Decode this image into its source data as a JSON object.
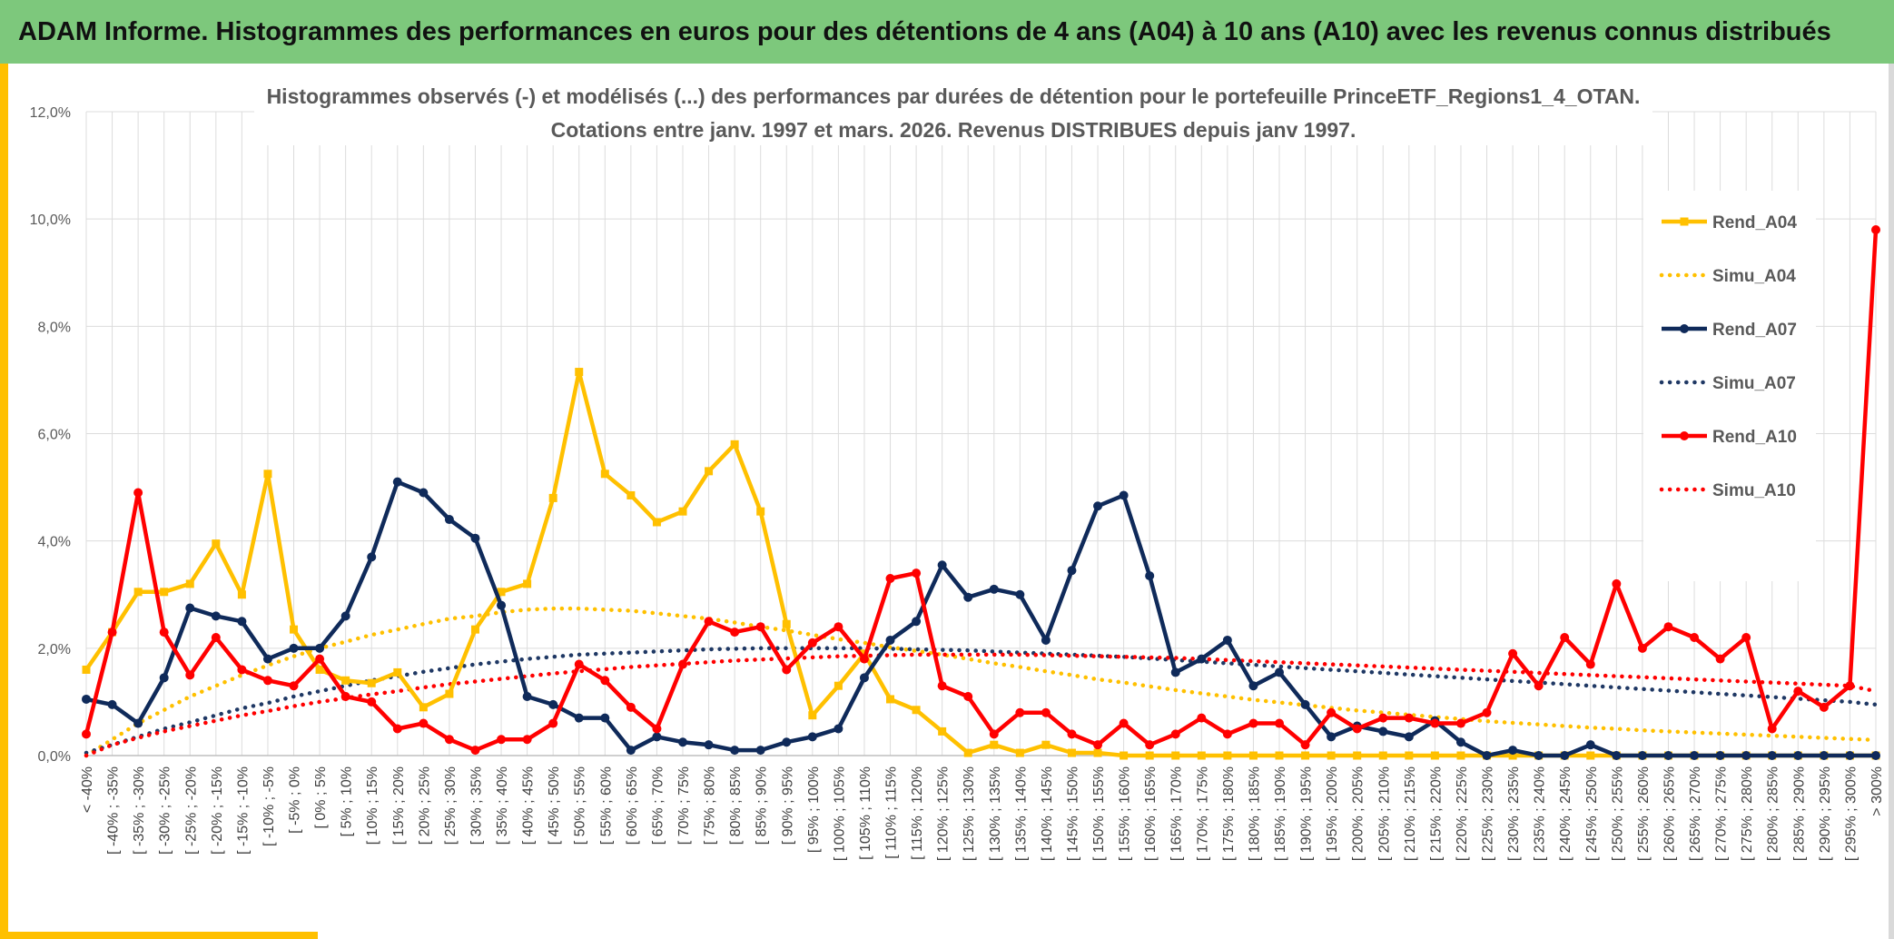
{
  "header": {
    "banner_title": "ADAM Informe. Histogrammes des performances en euros pour des détentions de 4 ans (A04) à 10 ans (A10) avec les revenus connus distribués"
  },
  "chart_data": {
    "type": "line",
    "title": "Histogrammes observés (-) et modélisés (...) des performances par durées de détention pour le portefeuille PrinceETF_Regions1_4_OTAN.",
    "subtitle": "Cotations entre janv. 1997 et mars. 2026. Revenus DISTRIBUES depuis janv 1997.",
    "xlabel": "",
    "ylabel": "",
    "ylim": [
      0,
      12
    ],
    "y_ticks": [
      "0,0%",
      "2,0%",
      "4,0%",
      "6,0%",
      "8,0%",
      "10,0%",
      "12,0%"
    ],
    "grid": true,
    "legend_position": "right",
    "categories": [
      "< -40%",
      "[ -40% ; -35%",
      "[ -35% ; -30%",
      "[ -30% ; -25%",
      "[ -25% ; -20%",
      "[ -20% ; -15%",
      "[ -15% ; -10%",
      "[ -10% ; -5%",
      "[ -5% ; 0%",
      "[ 0% ; 5%",
      "[ 5% ; 10%",
      "[ 10% ; 15%",
      "[ 15% ; 20%",
      "[ 20% ; 25%",
      "[ 25% ; 30%",
      "[ 30% ; 35%",
      "[ 35% ; 40%",
      "[ 40% ; 45%",
      "[ 45% ; 50%",
      "[ 50% ; 55%",
      "[ 55% ; 60%",
      "[ 60% ; 65%",
      "[ 65% ; 70%",
      "[ 70% ; 75%",
      "[ 75% ; 80%",
      "[ 80% ; 85%",
      "[ 85% ; 90%",
      "[ 90% ; 95%",
      "[ 95% ; 100%",
      "[ 100% ; 105%",
      "[ 105% ; 110%",
      "[ 110% ; 115%",
      "[ 115% ; 120%",
      "[ 120% ; 125%",
      "[ 125% ; 130%",
      "[ 130% ; 135%",
      "[ 135% ; 140%",
      "[ 140% ; 145%",
      "[ 145% ; 150%",
      "[ 150% ; 155%",
      "[ 155% ; 160%",
      "[ 160% ; 165%",
      "[ 165% ; 170%",
      "[ 170% ; 175%",
      "[ 175% ; 180%",
      "[ 180% ; 185%",
      "[ 185% ; 190%",
      "[ 190% ; 195%",
      "[ 195% ; 200%",
      "[ 200% ; 205%",
      "[ 205% ; 210%",
      "[ 210% ; 215%",
      "[ 215% ; 220%",
      "[ 220% ; 225%",
      "[ 225% ; 230%",
      "[ 230% ; 235%",
      "[ 235% ; 240%",
      "[ 240% ; 245%",
      "[ 245% ; 250%",
      "[ 250% ; 255%",
      "[ 255% ; 260%",
      "[ 260% ; 265%",
      "[ 265% ; 270%",
      "[ 270% ; 275%",
      "[ 275% ; 280%",
      "[ 280% ; 285%",
      "[ 285% ; 290%",
      "[ 290% ; 295%",
      "[ 295% ; 300%",
      "> 300%"
    ],
    "series": [
      {
        "name": "Rend_A04",
        "color": "#ffc000",
        "style": "solid",
        "marker": "square",
        "values": [
          1.6,
          2.3,
          3.05,
          3.05,
          3.2,
          3.95,
          3.0,
          5.25,
          2.35,
          1.6,
          1.4,
          1.35,
          1.55,
          0.9,
          1.15,
          2.35,
          3.05,
          3.2,
          4.8,
          7.15,
          5.25,
          4.85,
          4.35,
          4.55,
          5.3,
          5.8,
          4.55,
          2.45,
          0.75,
          1.3,
          1.9,
          1.05,
          0.85,
          0.45,
          0.05,
          0.2,
          0.05,
          0.2,
          0.05,
          0.05,
          0.0,
          0.0,
          0.0,
          0.0,
          0.0,
          0.0,
          0.0,
          0.0,
          0.0,
          0.0,
          0.0,
          0.0,
          0.0,
          0.0,
          0.0,
          0.0,
          0.0,
          0.0,
          0.0,
          0.0,
          0.0,
          0.0,
          0.0,
          0.0,
          0.0,
          0.0,
          0.0,
          0.0,
          0.0,
          0.0
        ]
      },
      {
        "name": "Simu_A04",
        "color": "#ffc000",
        "style": "dotted",
        "values": [
          0.0,
          0.3,
          0.6,
          0.85,
          1.1,
          1.3,
          1.5,
          1.68,
          1.85,
          2.0,
          2.12,
          2.25,
          2.35,
          2.45,
          2.55,
          2.6,
          2.67,
          2.72,
          2.74,
          2.74,
          2.72,
          2.7,
          2.65,
          2.6,
          2.55,
          2.48,
          2.4,
          2.33,
          2.25,
          2.17,
          2.1,
          2.02,
          1.95,
          1.88,
          1.8,
          1.72,
          1.65,
          1.57,
          1.5,
          1.42,
          1.36,
          1.29,
          1.22,
          1.16,
          1.1,
          1.04,
          0.99,
          0.94,
          0.89,
          0.84,
          0.8,
          0.76,
          0.72,
          0.68,
          0.64,
          0.61,
          0.58,
          0.55,
          0.52,
          0.5,
          0.47,
          0.45,
          0.43,
          0.41,
          0.39,
          0.37,
          0.35,
          0.33,
          0.31,
          0.29
        ]
      },
      {
        "name": "Rend_A07",
        "color": "#0f2a5a",
        "style": "solid",
        "marker": "circle",
        "values": [
          1.05,
          0.95,
          0.6,
          1.45,
          2.75,
          2.6,
          2.5,
          1.8,
          2.0,
          2.0,
          2.6,
          3.7,
          5.1,
          4.9,
          4.4,
          4.05,
          2.8,
          1.1,
          0.95,
          0.7,
          0.7,
          0.1,
          0.35,
          0.25,
          0.2,
          0.1,
          0.1,
          0.25,
          0.35,
          0.5,
          1.45,
          2.15,
          2.5,
          3.55,
          2.95,
          3.1,
          3.0,
          2.15,
          3.45,
          4.65,
          4.85,
          3.35,
          1.55,
          1.8,
          2.15,
          1.3,
          1.55,
          0.95,
          0.35,
          0.55,
          0.45,
          0.35,
          0.65,
          0.25,
          0.0,
          0.1,
          0.0,
          0.0,
          0.2,
          0.0,
          0.0,
          0.0,
          0.0,
          0.0,
          0.0,
          0.0,
          0.0,
          0.0,
          0.0,
          0.0
        ]
      },
      {
        "name": "Simu_A07",
        "color": "#1f3864",
        "style": "dotted",
        "values": [
          0.05,
          0.2,
          0.35,
          0.5,
          0.62,
          0.75,
          0.88,
          0.98,
          1.1,
          1.2,
          1.3,
          1.4,
          1.48,
          1.56,
          1.63,
          1.7,
          1.75,
          1.8,
          1.84,
          1.88,
          1.9,
          1.92,
          1.94,
          1.96,
          1.98,
          1.99,
          2.0,
          2.0,
          2.0,
          2.0,
          2.0,
          1.99,
          1.98,
          1.97,
          1.96,
          1.94,
          1.92,
          1.9,
          1.88,
          1.86,
          1.84,
          1.81,
          1.78,
          1.75,
          1.72,
          1.69,
          1.66,
          1.63,
          1.6,
          1.57,
          1.54,
          1.51,
          1.48,
          1.45,
          1.42,
          1.39,
          1.36,
          1.33,
          1.3,
          1.27,
          1.24,
          1.21,
          1.18,
          1.15,
          1.12,
          1.09,
          1.06,
          1.03,
          1.0,
          0.95
        ]
      },
      {
        "name": "Rend_A10",
        "color": "#ff0000",
        "style": "solid",
        "marker": "circle",
        "values": [
          0.4,
          2.3,
          4.9,
          2.3,
          1.5,
          2.2,
          1.6,
          1.4,
          1.3,
          1.8,
          1.1,
          1.0,
          0.5,
          0.6,
          0.3,
          0.1,
          0.3,
          0.3,
          0.6,
          1.7,
          1.4,
          0.9,
          0.5,
          1.7,
          2.5,
          2.3,
          2.4,
          1.6,
          2.1,
          2.4,
          1.8,
          3.3,
          3.4,
          1.3,
          1.1,
          0.4,
          0.8,
          0.8,
          0.4,
          0.2,
          0.6,
          0.2,
          0.4,
          0.7,
          0.4,
          0.6,
          0.6,
          0.2,
          0.8,
          0.5,
          0.7,
          0.7,
          0.6,
          0.6,
          0.8,
          1.9,
          1.3,
          2.2,
          1.7,
          3.2,
          2.0,
          2.4,
          2.2,
          1.8,
          2.2,
          0.5,
          1.2,
          0.9,
          1.3,
          9.8
        ]
      },
      {
        "name": "Simu_A10",
        "color": "#ff0000",
        "style": "dotted",
        "values": [
          0.0,
          0.2,
          0.33,
          0.45,
          0.55,
          0.65,
          0.75,
          0.83,
          0.92,
          1.0,
          1.07,
          1.14,
          1.2,
          1.27,
          1.33,
          1.38,
          1.43,
          1.48,
          1.53,
          1.57,
          1.61,
          1.65,
          1.68,
          1.71,
          1.74,
          1.77,
          1.79,
          1.81,
          1.83,
          1.85,
          1.86,
          1.87,
          1.88,
          1.88,
          1.88,
          1.88,
          1.88,
          1.87,
          1.86,
          1.85,
          1.84,
          1.83,
          1.82,
          1.8,
          1.78,
          1.76,
          1.74,
          1.72,
          1.7,
          1.68,
          1.66,
          1.64,
          1.62,
          1.6,
          1.58,
          1.56,
          1.54,
          1.52,
          1.5,
          1.48,
          1.46,
          1.44,
          1.42,
          1.4,
          1.38,
          1.36,
          1.34,
          1.32,
          1.3,
          1.2
        ]
      }
    ]
  }
}
